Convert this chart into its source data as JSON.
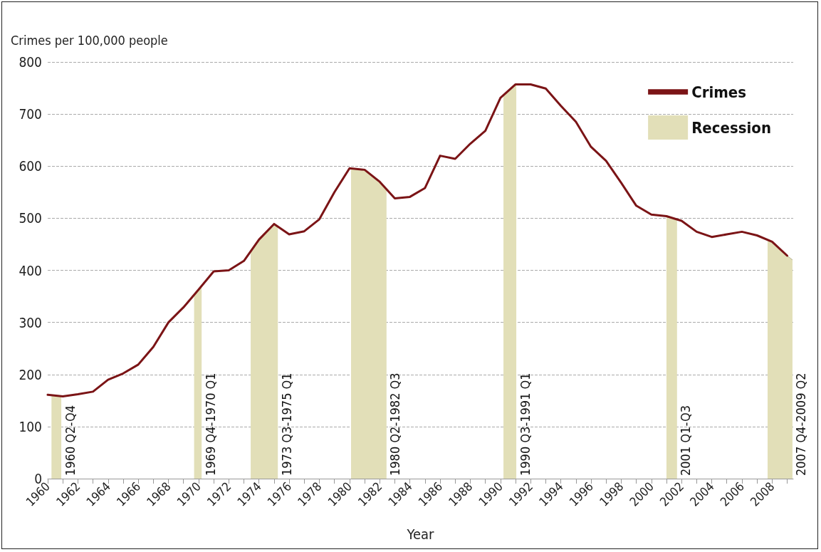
{
  "chart_data": {
    "type": "line",
    "ylabel": "Crimes per 100,000 people",
    "xlabel": "Year",
    "x": [
      1960,
      1961,
      1962,
      1963,
      1964,
      1965,
      1966,
      1967,
      1968,
      1969,
      1970,
      1971,
      1972,
      1973,
      1974,
      1975,
      1976,
      1977,
      1978,
      1979,
      1980,
      1981,
      1982,
      1983,
      1984,
      1985,
      1986,
      1987,
      1988,
      1989,
      1990,
      1991,
      1992,
      1993,
      1994,
      1995,
      1996,
      1997,
      1998,
      1999,
      2000,
      2001,
      2002,
      2003,
      2004,
      2005,
      2006,
      2007,
      2008,
      2009
    ],
    "series": [
      {
        "name": "Crimes",
        "color": "#7b1416",
        "values": [
          161,
          158,
          162,
          167,
          190,
          202,
          219,
          253,
          300,
          329,
          363,
          398,
          400,
          418,
          459,
          489,
          469,
          475,
          498,
          550,
          596,
          593,
          570,
          538,
          541,
          558,
          620,
          614,
          643,
          668,
          731,
          757,
          757,
          749,
          716,
          685,
          637,
          610,
          568,
          524,
          507,
          504,
          495,
          474,
          464,
          469,
          474,
          467,
          455,
          428
        ]
      },
      {
        "name": "Recession",
        "type": "area",
        "color": "#e2dfb8",
        "x": [
          1960.25,
          1960.9,
          null,
          1969.7,
          1970,
          1970.2,
          null,
          1973.45,
          1974,
          1975,
          1975.25,
          null,
          1980.1,
          1981,
          1982,
          1982.45,
          null,
          1990.2,
          1991,
          1991.05,
          null,
          2001,
          2001.7,
          null,
          2007.7,
          2008,
          2009,
          2009.35
        ],
        "values": [
          160,
          158,
          null,
          353,
          363,
          370,
          null,
          436,
          459,
          489,
          484,
          null,
          596,
          593,
          570,
          555,
          null,
          736,
          757,
          757,
          null,
          504,
          498,
          null,
          459,
          455,
          428,
          420
        ]
      }
    ],
    "xlim": [
      1960,
      2009.4
    ],
    "xticks": [
      {
        "value": 1960,
        "label": "1960"
      },
      {
        "value": 1961,
        "label": null
      },
      {
        "value": 1962,
        "label": "1962"
      },
      {
        "value": 1963,
        "label": null
      },
      {
        "value": 1964,
        "label": "1964"
      },
      {
        "value": 1965,
        "label": null
      },
      {
        "value": 1966,
        "label": "1966"
      },
      {
        "value": 1967,
        "label": null
      },
      {
        "value": 1968,
        "label": "1968"
      },
      {
        "value": 1969,
        "label": null
      },
      {
        "value": 1970,
        "label": "1970"
      },
      {
        "value": 1971,
        "label": null
      },
      {
        "value": 1972,
        "label": "1972"
      },
      {
        "value": 1973,
        "label": null
      },
      {
        "value": 1974,
        "label": "1974"
      },
      {
        "value": 1975,
        "label": null
      },
      {
        "value": 1976,
        "label": "1976"
      },
      {
        "value": 1977,
        "label": null
      },
      {
        "value": 1978,
        "label": "1978"
      },
      {
        "value": 1979,
        "label": null
      },
      {
        "value": 1980,
        "label": "1980"
      },
      {
        "value": 1981,
        "label": null
      },
      {
        "value": 1982,
        "label": "1982"
      },
      {
        "value": 1983,
        "label": null
      },
      {
        "value": 1984,
        "label": "1984"
      },
      {
        "value": 1985,
        "label": null
      },
      {
        "value": 1986,
        "label": "1986"
      },
      {
        "value": 1987,
        "label": null
      },
      {
        "value": 1988,
        "label": "1988"
      },
      {
        "value": 1989,
        "label": null
      },
      {
        "value": 1990,
        "label": "1990"
      },
      {
        "value": 1991,
        "label": null
      },
      {
        "value": 1992,
        "label": "1992"
      },
      {
        "value": 1993,
        "label": null
      },
      {
        "value": 1994,
        "label": "1994"
      },
      {
        "value": 1995,
        "label": null
      },
      {
        "value": 1996,
        "label": "1996"
      },
      {
        "value": 1997,
        "label": null
      },
      {
        "value": 1998,
        "label": "1998"
      },
      {
        "value": 1999,
        "label": null
      },
      {
        "value": 2000,
        "label": "2000"
      },
      {
        "value": 2001,
        "label": null
      },
      {
        "value": 2002,
        "label": "2002"
      },
      {
        "value": 2003,
        "label": null
      },
      {
        "value": 2004,
        "label": "2004"
      },
      {
        "value": 2005,
        "label": null
      },
      {
        "value": 2006,
        "label": "2006"
      },
      {
        "value": 2007,
        "label": null
      },
      {
        "value": 2008,
        "label": "2008"
      },
      {
        "value": 2009,
        "label": null
      }
    ],
    "ylim": [
      0,
      800
    ],
    "yticks": [
      0,
      100,
      200,
      300,
      400,
      500,
      600,
      700,
      800
    ],
    "grid": "y",
    "legend": "top right",
    "marker": "none",
    "line_style": "solid",
    "annotations": [
      {
        "text": "1960 Q2-Q4",
        "x": 1960.9,
        "y": 0
      },
      {
        "text": "1969 Q4-1970 Q1",
        "x": 1970.2,
        "y": 0
      },
      {
        "text": "1973 Q3-1975 Q1",
        "x": 1975.25,
        "y": 0
      },
      {
        "text": "1980 Q2-1982 Q3",
        "x": 1982.45,
        "y": 0
      },
      {
        "text": "1990 Q3-1991 Q1",
        "x": 1991.05,
        "y": 0
      },
      {
        "text": "2001 Q1-Q3",
        "x": 2001.7,
        "y": 0
      },
      {
        "text": "2007 Q4-2009 Q2",
        "x": 2009.35,
        "y": 0
      }
    ]
  }
}
